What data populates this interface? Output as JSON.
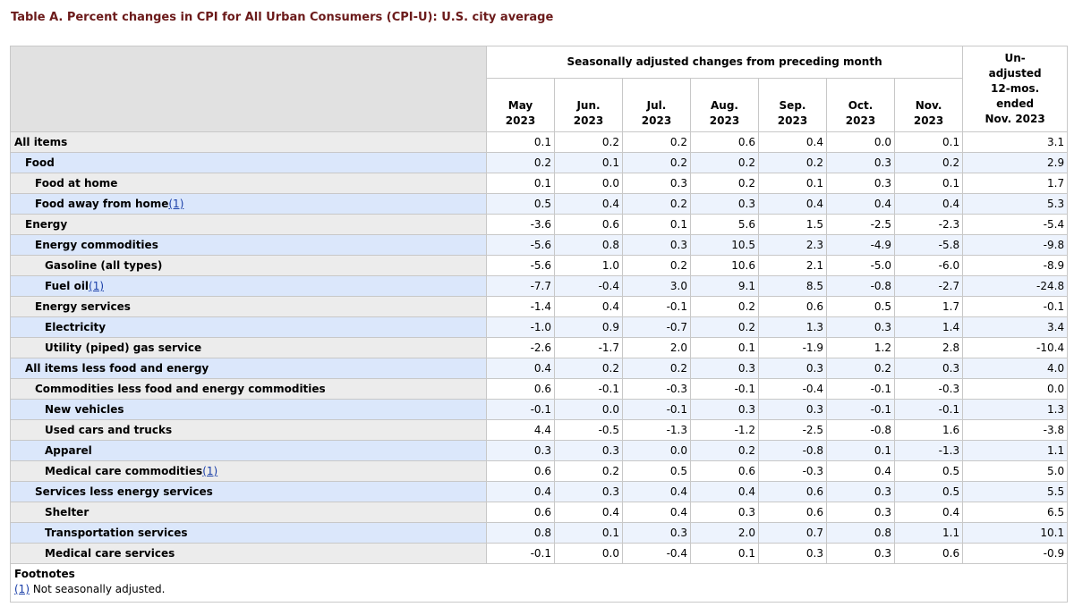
{
  "caption": "Table A. Percent changes in CPI for All Urban Consumers (CPI-U): U.S. city average",
  "header": {
    "group_label": "Seasonally adjusted changes from preceding month",
    "months": [
      {
        "m": "May",
        "y": "2023"
      },
      {
        "m": "Jun.",
        "y": "2023"
      },
      {
        "m": "Jul.",
        "y": "2023"
      },
      {
        "m": "Aug.",
        "y": "2023"
      },
      {
        "m": "Sep.",
        "y": "2023"
      },
      {
        "m": "Oct.",
        "y": "2023"
      },
      {
        "m": "Nov.",
        "y": "2023"
      }
    ],
    "unadjusted": [
      "Un-",
      "adjusted",
      "12-mos.",
      "ended",
      "Nov. 2023"
    ]
  },
  "rows": [
    {
      "label": "All items",
      "indent": 0,
      "fn": "",
      "values": [
        "0.1",
        "0.2",
        "0.2",
        "0.6",
        "0.4",
        "0.0",
        "0.1",
        "3.1"
      ]
    },
    {
      "label": "Food",
      "indent": 1,
      "fn": "",
      "values": [
        "0.2",
        "0.1",
        "0.2",
        "0.2",
        "0.2",
        "0.3",
        "0.2",
        "2.9"
      ]
    },
    {
      "label": "Food at home",
      "indent": 2,
      "fn": "",
      "values": [
        "0.1",
        "0.0",
        "0.3",
        "0.2",
        "0.1",
        "0.3",
        "0.1",
        "1.7"
      ]
    },
    {
      "label": "Food away from home",
      "indent": 2,
      "fn": "(1)",
      "values": [
        "0.5",
        "0.4",
        "0.2",
        "0.3",
        "0.4",
        "0.4",
        "0.4",
        "5.3"
      ]
    },
    {
      "label": "Energy",
      "indent": 1,
      "fn": "",
      "values": [
        "-3.6",
        "0.6",
        "0.1",
        "5.6",
        "1.5",
        "-2.5",
        "-2.3",
        "-5.4"
      ]
    },
    {
      "label": "Energy commodities",
      "indent": 2,
      "fn": "",
      "values": [
        "-5.6",
        "0.8",
        "0.3",
        "10.5",
        "2.3",
        "-4.9",
        "-5.8",
        "-9.8"
      ]
    },
    {
      "label": "Gasoline (all types)",
      "indent": 3,
      "fn": "",
      "values": [
        "-5.6",
        "1.0",
        "0.2",
        "10.6",
        "2.1",
        "-5.0",
        "-6.0",
        "-8.9"
      ]
    },
    {
      "label": "Fuel oil",
      "indent": 3,
      "fn": "(1)",
      "values": [
        "-7.7",
        "-0.4",
        "3.0",
        "9.1",
        "8.5",
        "-0.8",
        "-2.7",
        "-24.8"
      ]
    },
    {
      "label": "Energy services",
      "indent": 2,
      "fn": "",
      "values": [
        "-1.4",
        "0.4",
        "-0.1",
        "0.2",
        "0.6",
        "0.5",
        "1.7",
        "-0.1"
      ]
    },
    {
      "label": "Electricity",
      "indent": 3,
      "fn": "",
      "values": [
        "-1.0",
        "0.9",
        "-0.7",
        "0.2",
        "1.3",
        "0.3",
        "1.4",
        "3.4"
      ]
    },
    {
      "label": "Utility (piped) gas service",
      "indent": 3,
      "fn": "",
      "values": [
        "-2.6",
        "-1.7",
        "2.0",
        "0.1",
        "-1.9",
        "1.2",
        "2.8",
        "-10.4"
      ]
    },
    {
      "label": "All items less food and energy",
      "indent": 1,
      "fn": "",
      "values": [
        "0.4",
        "0.2",
        "0.2",
        "0.3",
        "0.3",
        "0.2",
        "0.3",
        "4.0"
      ]
    },
    {
      "label": "Commodities less food and energy commodities",
      "indent": 2,
      "fn": "",
      "values": [
        "0.6",
        "-0.1",
        "-0.3",
        "-0.1",
        "-0.4",
        "-0.1",
        "-0.3",
        "0.0"
      ]
    },
    {
      "label": "New vehicles",
      "indent": 3,
      "fn": "",
      "values": [
        "-0.1",
        "0.0",
        "-0.1",
        "0.3",
        "0.3",
        "-0.1",
        "-0.1",
        "1.3"
      ]
    },
    {
      "label": "Used cars and trucks",
      "indent": 3,
      "fn": "",
      "values": [
        "4.4",
        "-0.5",
        "-1.3",
        "-1.2",
        "-2.5",
        "-0.8",
        "1.6",
        "-3.8"
      ]
    },
    {
      "label": "Apparel",
      "indent": 3,
      "fn": "",
      "values": [
        "0.3",
        "0.3",
        "0.0",
        "0.2",
        "-0.8",
        "0.1",
        "-1.3",
        "1.1"
      ]
    },
    {
      "label": "Medical care commodities",
      "indent": 3,
      "fn": "(1)",
      "values": [
        "0.6",
        "0.2",
        "0.5",
        "0.6",
        "-0.3",
        "0.4",
        "0.5",
        "5.0"
      ]
    },
    {
      "label": "Services less energy services",
      "indent": 2,
      "fn": "",
      "values": [
        "0.4",
        "0.3",
        "0.4",
        "0.4",
        "0.6",
        "0.3",
        "0.5",
        "5.5"
      ]
    },
    {
      "label": "Shelter",
      "indent": 3,
      "fn": "",
      "values": [
        "0.6",
        "0.4",
        "0.4",
        "0.3",
        "0.6",
        "0.3",
        "0.4",
        "6.5"
      ]
    },
    {
      "label": "Transportation services",
      "indent": 3,
      "fn": "",
      "values": [
        "0.8",
        "0.1",
        "0.3",
        "2.0",
        "0.7",
        "0.8",
        "1.1",
        "10.1"
      ]
    },
    {
      "label": "Medical care services",
      "indent": 3,
      "fn": "",
      "values": [
        "-0.1",
        "0.0",
        "-0.4",
        "0.1",
        "0.3",
        "0.3",
        "0.6",
        "-0.9"
      ]
    }
  ],
  "footnotes": {
    "title": "Footnotes",
    "items": [
      {
        "ref": "(1)",
        "text": " Not seasonally adjusted."
      }
    ]
  }
}
